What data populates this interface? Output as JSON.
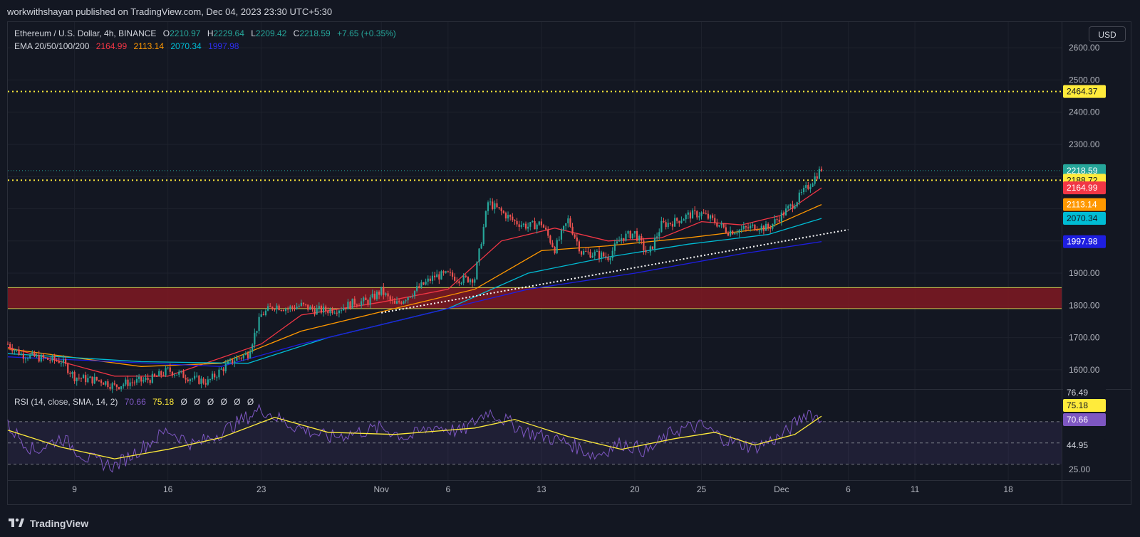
{
  "header": {
    "publisher": "workwithshayan published on TradingView.com, Dec 04, 2023 23:30 UTC+5:30"
  },
  "symbol": {
    "name": "Ethereum / U.S. Dollar, 4h, BINANCE",
    "o_label": "O",
    "o": "2210.97",
    "h_label": "H",
    "h": "2229.64",
    "l_label": "L",
    "l": "2209.42",
    "c_label": "C",
    "c": "2218.59",
    "change": "+7.65 (+0.35%)"
  },
  "ema_legend": {
    "label": "EMA 20/50/100/200",
    "ema20": "2164.99",
    "ema50": "2113.14",
    "ema100": "2070.34",
    "ema200": "1997.98"
  },
  "rsi_legend": {
    "label": "RSI (14, close, SMA, 14, 2)",
    "rsi": "70.66",
    "sma": "75.18",
    "extras": [
      "Ø",
      "Ø",
      "Ø",
      "Ø",
      "Ø",
      "Ø"
    ]
  },
  "currency_button": "USD",
  "brand": "TradingView",
  "colors": {
    "background": "#131722",
    "up": "#26a69a",
    "down": "#ef5350",
    "ema20": "#f23645",
    "ema50": "#ff9800",
    "ema100": "#00bcd4",
    "ema200": "#1e1ee0",
    "zone": "#801922",
    "level": "#ffeb3b",
    "rsi": "#7e57c2",
    "rsi_sma": "#ffeb3b"
  },
  "price_axis": {
    "ticks": [
      "2600.00",
      "2500.00",
      "2400.00",
      "2300.00",
      "1900.00",
      "1800.00",
      "1700.00",
      "1600.00"
    ]
  },
  "rsi_axis": {
    "ticks": [
      "25.00"
    ],
    "labels": [
      "76.49",
      "75.18",
      "70.66",
      "44.95"
    ]
  },
  "time_axis": {
    "labels": [
      "9",
      "16",
      "23",
      "Nov",
      "6",
      "13",
      "20",
      "25",
      "Dec",
      "6",
      "11",
      "18"
    ]
  },
  "price_labels": [
    {
      "text": "2464.37",
      "value": 2464.37,
      "bg": "#ffeb3b",
      "fg": "#131722"
    },
    {
      "text": "2218.59",
      "value": 2218.59,
      "bg": "#26a69a",
      "fg": "#ffffff"
    },
    {
      "text": "2188.72",
      "value": 2188.72,
      "bg": "#ffeb3b",
      "fg": "#131722"
    },
    {
      "text": "2164.99",
      "value": 2164.99,
      "bg": "#f23645",
      "fg": "#ffffff"
    },
    {
      "text": "2113.14",
      "value": 2113.14,
      "bg": "#ff9800",
      "fg": "#ffffff"
    },
    {
      "text": "2070.34",
      "value": 2070.34,
      "bg": "#00bcd4",
      "fg": "#131722"
    },
    {
      "text": "1997.98",
      "value": 1997.98,
      "bg": "#1e1ee0",
      "fg": "#ffffff"
    }
  ],
  "chart_data": {
    "type": "candlestick",
    "symbol": "ETHUSD",
    "timeframe": "4h",
    "ylim": [
      1540,
      2680
    ],
    "levels": [
      2464.37,
      2188.72
    ],
    "zone": [
      1790,
      1855
    ],
    "trendline": {
      "from": {
        "date": "2023-11-01",
        "value": 1777
      },
      "to": {
        "date": "2023-12-06",
        "value": 2035
      }
    },
    "close_path": [
      {
        "date": "2023-10-04",
        "value": 1680
      },
      {
        "date": "2023-10-05",
        "value": 1648
      },
      {
        "date": "2023-10-06",
        "value": 1640
      },
      {
        "date": "2023-10-07",
        "value": 1632
      },
      {
        "date": "2023-10-08",
        "value": 1628
      },
      {
        "date": "2023-10-09",
        "value": 1578
      },
      {
        "date": "2023-10-10",
        "value": 1570
      },
      {
        "date": "2023-10-11",
        "value": 1567
      },
      {
        "date": "2023-10-12",
        "value": 1548
      },
      {
        "date": "2023-10-13",
        "value": 1560
      },
      {
        "date": "2023-10-14",
        "value": 1565
      },
      {
        "date": "2023-10-15",
        "value": 1575
      },
      {
        "date": "2023-10-16",
        "value": 1598
      },
      {
        "date": "2023-10-17",
        "value": 1585
      },
      {
        "date": "2023-10-18",
        "value": 1570
      },
      {
        "date": "2023-10-19",
        "value": 1562
      },
      {
        "date": "2023-10-20",
        "value": 1600
      },
      {
        "date": "2023-10-21",
        "value": 1632
      },
      {
        "date": "2023-10-22",
        "value": 1650
      },
      {
        "date": "2023-10-23",
        "value": 1770
      },
      {
        "date": "2023-10-24",
        "value": 1800
      },
      {
        "date": "2023-10-25",
        "value": 1790
      },
      {
        "date": "2023-10-26",
        "value": 1800
      },
      {
        "date": "2023-10-27",
        "value": 1785
      },
      {
        "date": "2023-10-28",
        "value": 1785
      },
      {
        "date": "2023-10-29",
        "value": 1792
      },
      {
        "date": "2023-10-30",
        "value": 1810
      },
      {
        "date": "2023-10-31",
        "value": 1812
      },
      {
        "date": "2023-11-01",
        "value": 1845
      },
      {
        "date": "2023-11-02",
        "value": 1800
      },
      {
        "date": "2023-11-03",
        "value": 1830
      },
      {
        "date": "2023-11-04",
        "value": 1860
      },
      {
        "date": "2023-11-05",
        "value": 1890
      },
      {
        "date": "2023-11-06",
        "value": 1895
      },
      {
        "date": "2023-11-07",
        "value": 1880
      },
      {
        "date": "2023-11-08",
        "value": 1885
      },
      {
        "date": "2023-11-09",
        "value": 2120
      },
      {
        "date": "2023-11-10",
        "value": 2090
      },
      {
        "date": "2023-11-11",
        "value": 2060
      },
      {
        "date": "2023-11-12",
        "value": 2045
      },
      {
        "date": "2023-11-13",
        "value": 2055
      },
      {
        "date": "2023-11-14",
        "value": 1975
      },
      {
        "date": "2023-11-15",
        "value": 2065
      },
      {
        "date": "2023-11-16",
        "value": 1965
      },
      {
        "date": "2023-11-17",
        "value": 1960
      },
      {
        "date": "2023-11-18",
        "value": 1950
      },
      {
        "date": "2023-11-19",
        "value": 2010
      },
      {
        "date": "2023-11-20",
        "value": 2025
      },
      {
        "date": "2023-11-21",
        "value": 1955
      },
      {
        "date": "2023-11-22",
        "value": 2050
      },
      {
        "date": "2023-11-23",
        "value": 2060
      },
      {
        "date": "2023-11-24",
        "value": 2080
      },
      {
        "date": "2023-11-25",
        "value": 2085
      },
      {
        "date": "2023-11-26",
        "value": 2060
      },
      {
        "date": "2023-11-27",
        "value": 2030
      },
      {
        "date": "2023-11-28",
        "value": 2035
      },
      {
        "date": "2023-11-29",
        "value": 2045
      },
      {
        "date": "2023-11-30",
        "value": 2040
      },
      {
        "date": "2023-12-01",
        "value": 2080
      },
      {
        "date": "2023-12-02",
        "value": 2120
      },
      {
        "date": "2023-12-03",
        "value": 2170
      },
      {
        "date": "2023-12-04",
        "value": 2225
      }
    ],
    "ema_paths": {
      "EMA 20": [
        {
          "date": "2023-10-04",
          "value": 1670
        },
        {
          "date": "2023-10-12",
          "value": 1580
        },
        {
          "date": "2023-10-16",
          "value": 1580
        },
        {
          "date": "2023-10-23",
          "value": 1680
        },
        {
          "date": "2023-10-26",
          "value": 1770
        },
        {
          "date": "2023-11-01",
          "value": 1810
        },
        {
          "date": "2023-11-06",
          "value": 1850
        },
        {
          "date": "2023-11-10",
          "value": 2000
        },
        {
          "date": "2023-11-14",
          "value": 2040
        },
        {
          "date": "2023-11-18",
          "value": 2000
        },
        {
          "date": "2023-11-22",
          "value": 2010
        },
        {
          "date": "2023-11-25",
          "value": 2060
        },
        {
          "date": "2023-11-28",
          "value": 2050
        },
        {
          "date": "2023-12-01",
          "value": 2080
        },
        {
          "date": "2023-12-04",
          "value": 2165
        }
      ],
      "EMA 50": [
        {
          "date": "2023-10-04",
          "value": 1665
        },
        {
          "date": "2023-10-14",
          "value": 1610
        },
        {
          "date": "2023-10-20",
          "value": 1620
        },
        {
          "date": "2023-10-26",
          "value": 1720
        },
        {
          "date": "2023-11-02",
          "value": 1790
        },
        {
          "date": "2023-11-08",
          "value": 1850
        },
        {
          "date": "2023-11-13",
          "value": 1970
        },
        {
          "date": "2023-11-18",
          "value": 1985
        },
        {
          "date": "2023-11-24",
          "value": 2010
        },
        {
          "date": "2023-11-30",
          "value": 2040
        },
        {
          "date": "2023-12-04",
          "value": 2113
        }
      ],
      "EMA 100": [
        {
          "date": "2023-10-04",
          "value": 1650
        },
        {
          "date": "2023-10-14",
          "value": 1625
        },
        {
          "date": "2023-10-22",
          "value": 1620
        },
        {
          "date": "2023-10-28",
          "value": 1700
        },
        {
          "date": "2023-11-06",
          "value": 1790
        },
        {
          "date": "2023-11-12",
          "value": 1900
        },
        {
          "date": "2023-11-18",
          "value": 1950
        },
        {
          "date": "2023-11-24",
          "value": 1990
        },
        {
          "date": "2023-11-30",
          "value": 2020
        },
        {
          "date": "2023-12-04",
          "value": 2070
        }
      ],
      "EMA 200": [
        {
          "date": "2023-10-04",
          "value": 1640
        },
        {
          "date": "2023-10-20",
          "value": 1610
        },
        {
          "date": "2023-10-26",
          "value": 1680
        },
        {
          "date": "2023-11-04",
          "value": 1770
        },
        {
          "date": "2023-11-12",
          "value": 1850
        },
        {
          "date": "2023-11-20",
          "value": 1900
        },
        {
          "date": "2023-11-28",
          "value": 1960
        },
        {
          "date": "2023-12-04",
          "value": 1998
        }
      ]
    },
    "rsi": {
      "ylim": [
        15,
        100
      ],
      "bands": [
        30,
        50,
        70
      ],
      "current": 70.66,
      "sma": 75.18,
      "path": [
        {
          "date": "2023-10-04",
          "value": 66
        },
        {
          "date": "2023-10-06",
          "value": 42
        },
        {
          "date": "2023-10-08",
          "value": 55
        },
        {
          "date": "2023-10-10",
          "value": 35
        },
        {
          "date": "2023-10-12",
          "value": 28
        },
        {
          "date": "2023-10-14",
          "value": 45
        },
        {
          "date": "2023-10-16",
          "value": 62
        },
        {
          "date": "2023-10-18",
          "value": 48
        },
        {
          "date": "2023-10-20",
          "value": 60
        },
        {
          "date": "2023-10-23",
          "value": 82
        },
        {
          "date": "2023-10-25",
          "value": 68
        },
        {
          "date": "2023-10-28",
          "value": 55
        },
        {
          "date": "2023-11-01",
          "value": 64
        },
        {
          "date": "2023-11-03",
          "value": 55
        },
        {
          "date": "2023-11-05",
          "value": 66
        },
        {
          "date": "2023-11-07",
          "value": 60
        },
        {
          "date": "2023-11-09",
          "value": 80
        },
        {
          "date": "2023-11-12",
          "value": 60
        },
        {
          "date": "2023-11-15",
          "value": 50
        },
        {
          "date": "2023-11-17",
          "value": 38
        },
        {
          "date": "2023-11-19",
          "value": 50
        },
        {
          "date": "2023-11-21",
          "value": 42
        },
        {
          "date": "2023-11-23",
          "value": 62
        },
        {
          "date": "2023-11-25",
          "value": 66
        },
        {
          "date": "2023-11-27",
          "value": 52
        },
        {
          "date": "2023-11-29",
          "value": 46
        },
        {
          "date": "2023-12-01",
          "value": 56
        },
        {
          "date": "2023-12-03",
          "value": 80
        },
        {
          "date": "2023-12-04",
          "value": 70.66
        }
      ],
      "sma_path": [
        {
          "date": "2023-10-04",
          "value": 62
        },
        {
          "date": "2023-10-08",
          "value": 46
        },
        {
          "date": "2023-10-12",
          "value": 35
        },
        {
          "date": "2023-10-16",
          "value": 44
        },
        {
          "date": "2023-10-20",
          "value": 55
        },
        {
          "date": "2023-10-24",
          "value": 74
        },
        {
          "date": "2023-10-28",
          "value": 60
        },
        {
          "date": "2023-11-02",
          "value": 58
        },
        {
          "date": "2023-11-08",
          "value": 64
        },
        {
          "date": "2023-11-11",
          "value": 72
        },
        {
          "date": "2023-11-15",
          "value": 56
        },
        {
          "date": "2023-11-19",
          "value": 44
        },
        {
          "date": "2023-11-23",
          "value": 54
        },
        {
          "date": "2023-11-26",
          "value": 60
        },
        {
          "date": "2023-11-29",
          "value": 48
        },
        {
          "date": "2023-12-02",
          "value": 58
        },
        {
          "date": "2023-12-04",
          "value": 75.18
        }
      ]
    },
    "x_range": [
      "2023-10-04",
      "2023-12-22"
    ],
    "x_ticks": [
      {
        "label": "9",
        "date": "2023-10-09"
      },
      {
        "label": "16",
        "date": "2023-10-16"
      },
      {
        "label": "23",
        "date": "2023-10-23"
      },
      {
        "label": "Nov",
        "date": "2023-11-01"
      },
      {
        "label": "6",
        "date": "2023-11-06"
      },
      {
        "label": "13",
        "date": "2023-11-13"
      },
      {
        "label": "20",
        "date": "2023-11-20"
      },
      {
        "label": "25",
        "date": "2023-11-25"
      },
      {
        "label": "Dec",
        "date": "2023-12-01"
      },
      {
        "label": "6",
        "date": "2023-12-06"
      },
      {
        "label": "11",
        "date": "2023-12-11"
      },
      {
        "label": "18",
        "date": "2023-12-18"
      }
    ],
    "y_ticks": [
      2600,
      2500,
      2400,
      2300,
      1900,
      1800,
      1700,
      1600
    ]
  }
}
